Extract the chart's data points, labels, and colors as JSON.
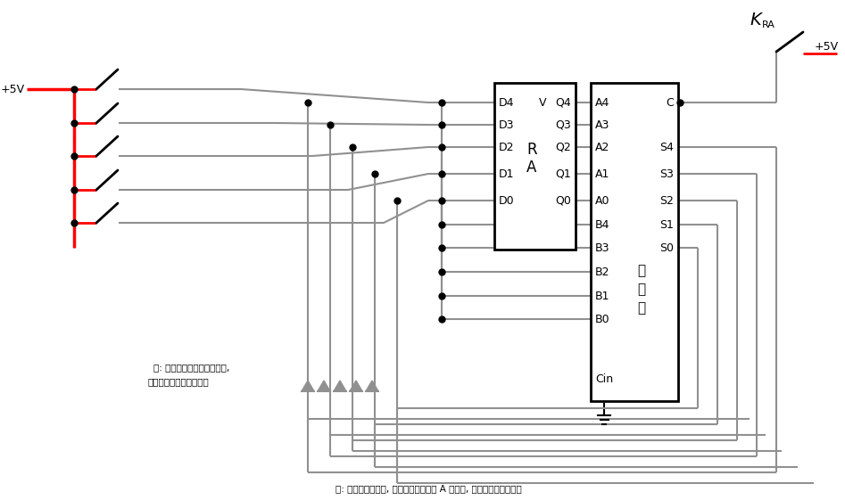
{
  "bg": "#ffffff",
  "lc": "#909090",
  "bc": "#000000",
  "rc": "#ff0000",
  "fig_w": 9.47,
  "fig_h": 5.61,
  "note_bottom": "注: 因结果直接回流, 当加法器左上方的 A 有值时, 结果会不断振荡变大",
  "note_left1": "注: 因实现层面上的一些缺陷,",
  "note_left2": "此处加入二极管防止倒流",
  "ram_left_labels": [
    "D4",
    "D3",
    "D2",
    "D1",
    "D0"
  ],
  "ram_right_labels": [
    "Q4",
    "Q3",
    "Q2",
    "Q1",
    "Q0"
  ],
  "ram_center": "R\nA",
  "ram_vcc": "V",
  "adder_left_labels": [
    "A4",
    "A3",
    "A2",
    "A1",
    "A0",
    "B4",
    "B3",
    "B2",
    "B1",
    "B0",
    "Cin"
  ],
  "adder_right_labels": [
    "C",
    "",
    "S4",
    "S3",
    "S2",
    "S1",
    "S0"
  ],
  "adder_center": "加\n法\n器",
  "plus5v_left": "+5V",
  "plus5v_right": "+5V",
  "kra": "K",
  "kra_sub": "RA"
}
